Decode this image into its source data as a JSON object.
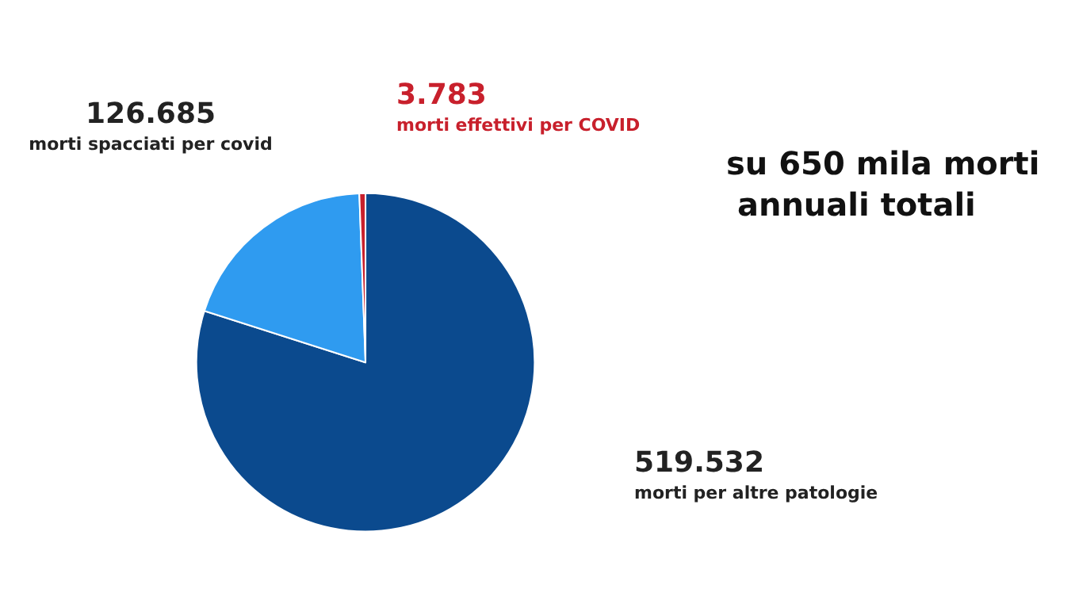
{
  "chart_data": {
    "type": "pie",
    "categories": [
      "morti per altre patologie",
      "morti spacciati per covid",
      "morti effettivi per COVID"
    ],
    "values": [
      519532,
      126685,
      3783
    ],
    "value_labels": [
      "519.532",
      "126.685",
      "3.783"
    ],
    "colors": [
      "#0b4a8e",
      "#2f9bf0",
      "#c8202c"
    ],
    "annotations": [
      "su 650 mila morti annuali totali"
    ],
    "legend": false
  }
}
